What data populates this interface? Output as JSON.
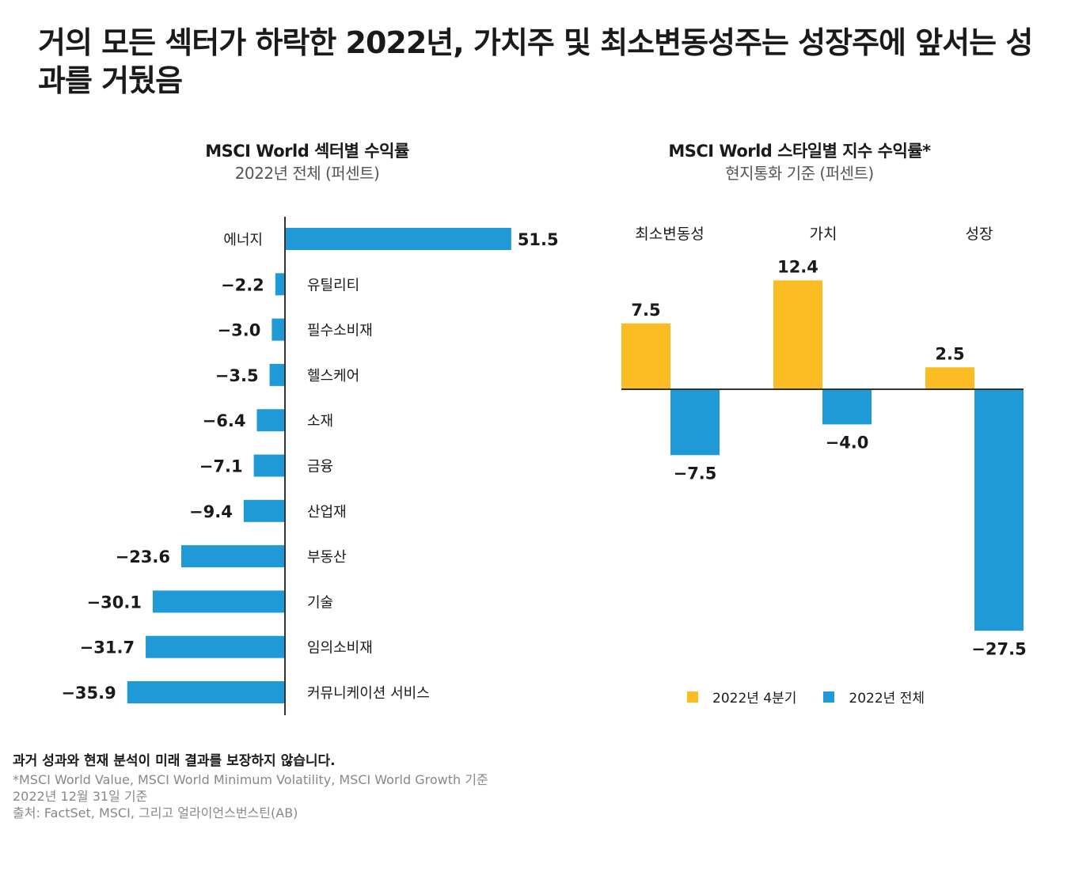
{
  "headline": "거의 모든 섹터가 하락한 2022년, 가치주 및 최소변동성주는 성장주에 앞서는 성과를 거뒀음",
  "left_chart": {
    "title": "MSCI World 섹터별 수익률",
    "subtitle": "2022년 전체 (퍼센트)"
  },
  "right_chart": {
    "title": "MSCI World 스타일별 지수 수익률*",
    "subtitle": "현지통화 기준 (퍼센트)"
  },
  "legend": {
    "q4": "2022년 4분기",
    "full": "2022년 전체"
  },
  "notes": {
    "disclaimer": "과거 성과와 현재 분석이 미래 결과를 보장하지 않습니다.",
    "line1": "*MSCI World Value, MSCI World Minimum Volatility, MSCI World Growth 기준",
    "line2": "2022년 12월 31일 기준",
    "line3": "출처: FactSet, MSCI, 그리고 얼라이언스번스틴(AB)"
  },
  "colors": {
    "blue": "#1f9ad6",
    "yellow": "#fbbd23",
    "axis": "#333333"
  },
  "chart_data": [
    {
      "type": "bar",
      "orientation": "horizontal",
      "title": "MSCI World 섹터별 수익률",
      "subtitle": "2022년 전체 (퍼센트)",
      "categories": [
        "에너지",
        "유틸리티",
        "필수소비재",
        "헬스케어",
        "소재",
        "금융",
        "산업재",
        "부동산",
        "기술",
        "임의소비재",
        "커뮤니케이션 서비스"
      ],
      "values": [
        51.5,
        -2.2,
        -3.0,
        -3.5,
        -6.4,
        -7.1,
        -9.4,
        -23.6,
        -30.1,
        -31.7,
        -35.9
      ],
      "labels": [
        "51.5",
        "−2.2",
        "−3.0",
        "−3.5",
        "−6.4",
        "−7.1",
        "−9.4",
        "−23.6",
        "−30.1",
        "−31.7",
        "−35.9"
      ],
      "xlim": [
        -36,
        52
      ]
    },
    {
      "type": "bar",
      "title": "MSCI World 스타일별 지수 수익률*",
      "subtitle": "현지통화 기준 (퍼센트)",
      "categories": [
        "최소변동성",
        "가치",
        "성장"
      ],
      "series": [
        {
          "name": "2022년 4분기",
          "values": [
            7.5,
            12.4,
            2.5
          ],
          "labels": [
            "7.5",
            "12.4",
            "2.5"
          ]
        },
        {
          "name": "2022년 전체",
          "values": [
            -7.5,
            -4.0,
            -27.5
          ],
          "labels": [
            "−7.5",
            "−4.0",
            "−27.5"
          ]
        }
      ],
      "ylim": [
        -28,
        13
      ]
    }
  ]
}
